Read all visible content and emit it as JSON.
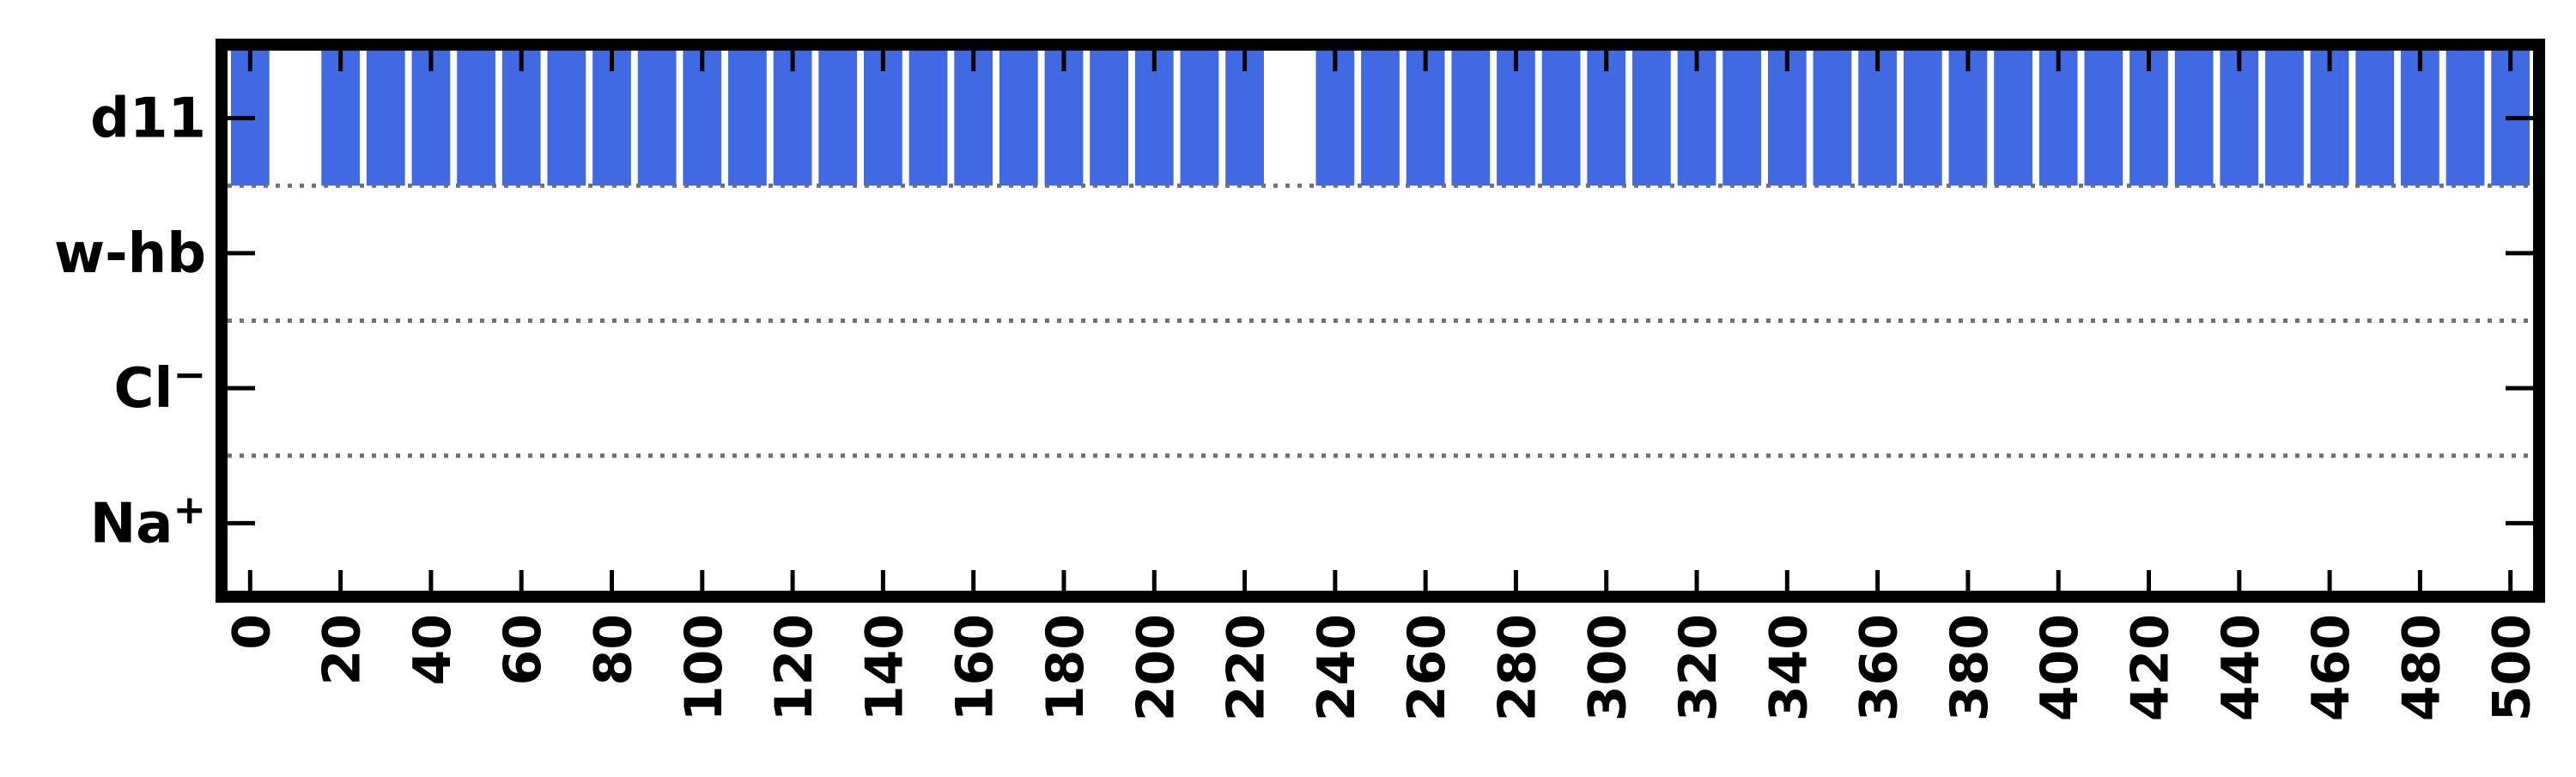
{
  "chart_data": {
    "type": "bar",
    "orientation": "timeline",
    "x_ticks": [
      0,
      20,
      40,
      60,
      80,
      100,
      120,
      140,
      160,
      180,
      200,
      220,
      240,
      260,
      280,
      300,
      320,
      340,
      360,
      380,
      400,
      420,
      440,
      460,
      480,
      500
    ],
    "x_tick_labels": [
      "0",
      "20",
      "40",
      "60",
      "80",
      "100",
      "120",
      "140",
      "160",
      "180",
      "200",
      "220",
      "240",
      "260",
      "280",
      "300",
      "320",
      "340",
      "360",
      "380",
      "400",
      "420",
      "440",
      "460",
      "480",
      "500"
    ],
    "xlim": [
      -5,
      505
    ],
    "rows": [
      {
        "key": "d11",
        "label": "d11",
        "sup": ""
      },
      {
        "key": "w-hb",
        "label": "w-hb",
        "sup": ""
      },
      {
        "key": "cl",
        "label": "Cl",
        "sup": "−"
      },
      {
        "key": "na",
        "label": "Na",
        "sup": "+"
      }
    ],
    "series": [
      {
        "row": "d11",
        "color": "#4169e1",
        "bar_width": 8.5,
        "x": [
          0,
          20,
          30,
          40,
          50,
          60,
          70,
          80,
          90,
          100,
          110,
          120,
          130,
          140,
          150,
          160,
          170,
          180,
          190,
          200,
          210,
          220,
          240,
          250,
          260,
          270,
          280,
          290,
          300,
          310,
          320,
          330,
          340,
          350,
          360,
          370,
          380,
          390,
          400,
          410,
          420,
          430,
          440,
          450,
          460,
          470,
          480,
          490,
          500
        ]
      },
      {
        "row": "w-hb",
        "color": "#4169e1",
        "bar_width": 8.5,
        "x": []
      },
      {
        "row": "cl",
        "color": "#4169e1",
        "bar_width": 8.5,
        "x": []
      },
      {
        "row": "na",
        "color": "#4169e1",
        "bar_width": 8.5,
        "x": []
      }
    ],
    "row_separators": "dotted",
    "grid": false,
    "title": "",
    "xlabel": "",
    "ylabel": ""
  }
}
